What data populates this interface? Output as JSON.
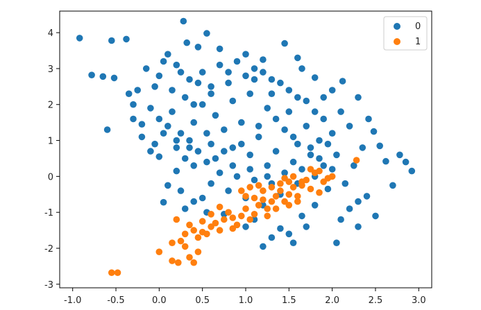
{
  "chart_data": {
    "type": "scatter",
    "title": "",
    "xlabel": "",
    "ylabel": "",
    "xlim": [
      -1.15,
      3.15
    ],
    "ylim": [
      -3.1,
      4.6
    ],
    "grid": false,
    "legend_position": "top-right",
    "x_ticks": [
      -1.0,
      -0.5,
      0.0,
      0.5,
      1.0,
      1.5,
      2.0,
      2.5,
      3.0
    ],
    "x_tick_labels": [
      "-1.0",
      "-0.5",
      "0.0",
      "0.5",
      "1.0",
      "1.5",
      "2.0",
      "2.5",
      "3.0"
    ],
    "y_ticks": [
      -3,
      -2,
      -1,
      0,
      1,
      2,
      3,
      4
    ],
    "y_tick_labels": [
      "-3",
      "-2",
      "-1",
      "0",
      "1",
      "2",
      "3",
      "4"
    ],
    "series": [
      {
        "name": "0",
        "color": "#1f77b4",
        "points": [
          [
            -0.92,
            3.85
          ],
          [
            -0.55,
            3.78
          ],
          [
            -0.38,
            3.82
          ],
          [
            -0.78,
            2.82
          ],
          [
            -0.65,
            2.78
          ],
          [
            -0.52,
            2.74
          ],
          [
            -0.6,
            1.3
          ],
          [
            -0.3,
            2.0
          ],
          [
            -0.2,
            1.45
          ],
          [
            -0.1,
            0.7
          ],
          [
            0.28,
            4.32
          ],
          [
            0.55,
            3.98
          ],
          [
            0.32,
            3.72
          ],
          [
            0.05,
            3.2
          ],
          [
            -0.05,
            2.5
          ],
          [
            0.0,
            0.55
          ],
          [
            0.1,
            -0.25
          ],
          [
            0.05,
            -0.72
          ],
          [
            0.4,
            -0.7
          ],
          [
            1.3,
            -1.7
          ],
          [
            1.55,
            -1.85
          ],
          [
            1.5,
            -1.6
          ],
          [
            1.2,
            -1.95
          ],
          [
            2.05,
            -1.85
          ],
          [
            2.12,
            2.65
          ],
          [
            2.3,
            2.2
          ],
          [
            2.42,
            1.6
          ],
          [
            2.48,
            1.25
          ],
          [
            2.55,
            0.85
          ],
          [
            2.62,
            0.42
          ],
          [
            2.78,
            0.6
          ],
          [
            2.85,
            0.4
          ],
          [
            2.92,
            0.15
          ],
          [
            2.7,
            -0.25
          ],
          [
            2.4,
            -0.55
          ],
          [
            2.5,
            -1.1
          ],
          [
            2.3,
            -1.4
          ],
          [
            2.2,
            -0.9
          ],
          [
            -0.25,
            2.4
          ],
          [
            -0.15,
            3.0
          ],
          [
            0.1,
            3.4
          ],
          [
            0.45,
            3.6
          ],
          [
            0.7,
            3.55
          ],
          [
            1.0,
            3.4
          ],
          [
            1.2,
            3.25
          ],
          [
            1.45,
            3.7
          ],
          [
            1.65,
            3.0
          ],
          [
            1.8,
            2.75
          ],
          [
            2.0,
            2.4
          ],
          [
            2.1,
            1.8
          ],
          [
            1.9,
            0.3
          ],
          [
            1.95,
            -0.35
          ],
          [
            1.8,
            -0.8
          ],
          [
            1.65,
            -1.1
          ],
          [
            1.4,
            -1.45
          ],
          [
            1.0,
            -1.4
          ],
          [
            0.75,
            -1.05
          ],
          [
            0.5,
            -0.6
          ],
          [
            0.25,
            -0.4
          ],
          [
            0.2,
            0.15
          ],
          [
            0.3,
            0.5
          ],
          [
            0.35,
            1.0
          ],
          [
            0.4,
            1.5
          ],
          [
            0.5,
            2.0
          ],
          [
            0.6,
            2.5
          ],
          [
            0.8,
            2.9
          ],
          [
            1.1,
            2.7
          ],
          [
            1.3,
            2.3
          ],
          [
            1.5,
            1.8
          ],
          [
            1.7,
            1.4
          ],
          [
            1.85,
            1.0
          ],
          [
            1.75,
            0.6
          ],
          [
            1.55,
            0.4
          ],
          [
            1.35,
            0.7
          ],
          [
            1.15,
            1.1
          ],
          [
            0.95,
            1.5
          ],
          [
            0.75,
            1.3
          ],
          [
            0.6,
            0.9
          ],
          [
            0.55,
            0.4
          ],
          [
            0.7,
            0.1
          ],
          [
            0.9,
            0.0
          ],
          [
            1.1,
            -0.1
          ],
          [
            1.3,
            -0.2
          ],
          [
            1.25,
            0.3
          ],
          [
            1.05,
            0.6
          ],
          [
            0.85,
            0.8
          ],
          [
            0.65,
            1.7
          ],
          [
            0.85,
            2.1
          ],
          [
            1.05,
            2.3
          ],
          [
            1.25,
            1.9
          ],
          [
            1.45,
            1.3
          ],
          [
            1.6,
            0.9
          ],
          [
            0.45,
            2.6
          ],
          [
            0.3,
            2.2
          ],
          [
            0.15,
            1.8
          ],
          [
            0.05,
            1.2
          ],
          [
            -0.05,
            0.9
          ],
          [
            0.2,
            0.8
          ],
          [
            0.4,
            0.3
          ],
          [
            0.6,
            -0.2
          ],
          [
            0.8,
            -0.4
          ],
          [
            1.0,
            -0.6
          ],
          [
            1.2,
            -0.8
          ],
          [
            1.4,
            -0.5
          ],
          [
            1.6,
            -0.2
          ],
          [
            1.8,
            0.0
          ],
          [
            2.0,
            0.2
          ],
          [
            2.05,
            0.6
          ],
          [
            2.0,
            1.2
          ],
          [
            1.9,
            1.6
          ],
          [
            1.7,
            2.1
          ],
          [
            1.5,
            2.4
          ],
          [
            1.3,
            2.7
          ],
          [
            1.1,
            3.0
          ],
          [
            0.9,
            3.2
          ],
          [
            0.7,
            3.1
          ],
          [
            0.5,
            2.9
          ],
          [
            0.35,
            2.7
          ],
          [
            0.25,
            2.9
          ],
          [
            0.15,
            2.4
          ],
          [
            0.0,
            1.6
          ],
          [
            -0.1,
            1.9
          ],
          [
            -0.2,
            1.1
          ],
          [
            0.1,
            1.4
          ],
          [
            0.25,
            1.2
          ],
          [
            0.45,
            0.7
          ],
          [
            0.65,
            0.5
          ],
          [
            0.85,
            0.3
          ],
          [
            1.05,
            0.2
          ],
          [
            1.25,
            0.0
          ],
          [
            1.45,
            0.1
          ],
          [
            1.65,
            0.2
          ],
          [
            1.85,
            0.5
          ],
          [
            1.95,
            0.9
          ],
          [
            1.8,
            1.8
          ],
          [
            1.6,
            2.2
          ],
          [
            1.4,
            2.6
          ],
          [
            1.2,
            2.9
          ],
          [
            1.0,
            2.8
          ],
          [
            0.8,
            2.6
          ],
          [
            0.6,
            2.3
          ],
          [
            0.4,
            2.0
          ],
          [
            0.2,
            1.0
          ],
          [
            0.35,
            0.8
          ],
          [
            0.55,
            1.2
          ],
          [
            0.75,
            0.7
          ],
          [
            0.95,
            0.9
          ],
          [
            1.15,
            1.4
          ],
          [
            1.35,
            1.6
          ],
          [
            1.55,
            1.1
          ],
          [
            1.75,
            0.8
          ],
          [
            2.15,
            -0.2
          ],
          [
            2.25,
            0.3
          ],
          [
            2.35,
            0.8
          ],
          [
            2.2,
            1.4
          ],
          [
            0.0,
            2.8
          ],
          [
            -0.3,
            1.6
          ],
          [
            -0.35,
            2.3
          ],
          [
            0.2,
            3.1
          ],
          [
            1.6,
            3.3
          ],
          [
            1.9,
            2.2
          ],
          [
            2.3,
            -0.7
          ],
          [
            2.1,
            -1.2
          ],
          [
            1.7,
            -1.4
          ],
          [
            1.1,
            -1.2
          ],
          [
            0.55,
            -1.0
          ],
          [
            0.3,
            -0.9
          ]
        ]
      },
      {
        "name": "1",
        "color": "#ff7f0e",
        "points": [
          [
            -0.55,
            -2.68
          ],
          [
            -0.48,
            -2.68
          ],
          [
            0.0,
            -2.1
          ],
          [
            0.15,
            -2.35
          ],
          [
            0.22,
            -2.4
          ],
          [
            0.35,
            -2.25
          ],
          [
            0.4,
            -2.4
          ],
          [
            0.45,
            -2.1
          ],
          [
            0.3,
            -1.95
          ],
          [
            0.25,
            -1.8
          ],
          [
            0.15,
            -1.85
          ],
          [
            0.2,
            -1.2
          ],
          [
            0.45,
            -1.7
          ],
          [
            0.5,
            -1.55
          ],
          [
            0.55,
            -1.6
          ],
          [
            0.6,
            -1.4
          ],
          [
            0.4,
            -1.5
          ],
          [
            0.35,
            -1.35
          ],
          [
            0.5,
            -1.25
          ],
          [
            0.65,
            -1.3
          ],
          [
            0.7,
            -1.5
          ],
          [
            0.75,
            -1.2
          ],
          [
            0.8,
            -1.0
          ],
          [
            0.85,
            -1.15
          ],
          [
            0.9,
            -1.35
          ],
          [
            0.95,
            -1.1
          ],
          [
            1.0,
            -0.9
          ],
          [
            1.05,
            -1.2
          ],
          [
            1.1,
            -1.05
          ],
          [
            1.15,
            -0.8
          ],
          [
            1.2,
            -0.65
          ],
          [
            1.25,
            -0.9
          ],
          [
            1.3,
            -0.7
          ],
          [
            1.35,
            -0.55
          ],
          [
            1.4,
            -0.4
          ],
          [
            1.45,
            -0.7
          ],
          [
            1.5,
            -0.5
          ],
          [
            1.55,
            -0.3
          ],
          [
            1.6,
            -0.55
          ],
          [
            1.65,
            -0.25
          ],
          [
            1.7,
            -0.1
          ],
          [
            1.75,
            -0.35
          ],
          [
            1.8,
            0.1
          ],
          [
            1.85,
            0.15
          ],
          [
            1.9,
            -0.15
          ],
          [
            1.95,
            -0.05
          ],
          [
            2.0,
            0.0
          ],
          [
            1.4,
            -0.2
          ],
          [
            1.3,
            -0.3
          ],
          [
            1.2,
            -0.4
          ],
          [
            1.1,
            -0.6
          ],
          [
            1.0,
            -0.55
          ],
          [
            0.95,
            -0.4
          ],
          [
            1.05,
            -0.3
          ],
          [
            1.15,
            -0.25
          ],
          [
            1.25,
            -1.1
          ],
          [
            1.35,
            -0.9
          ],
          [
            1.5,
            -0.8
          ],
          [
            1.6,
            -0.7
          ],
          [
            0.7,
            -0.85
          ],
          [
            0.6,
            -1.05
          ],
          [
            0.3,
            -1.6
          ],
          [
            2.28,
            0.45
          ],
          [
            1.45,
            -0.05
          ],
          [
            1.55,
            0.0
          ],
          [
            1.75,
            0.2
          ],
          [
            1.65,
            -0.15
          ],
          [
            1.5,
            -0.15
          ],
          [
            1.85,
            -0.45
          ],
          [
            0.85,
            -1.45
          ]
        ]
      }
    ]
  }
}
